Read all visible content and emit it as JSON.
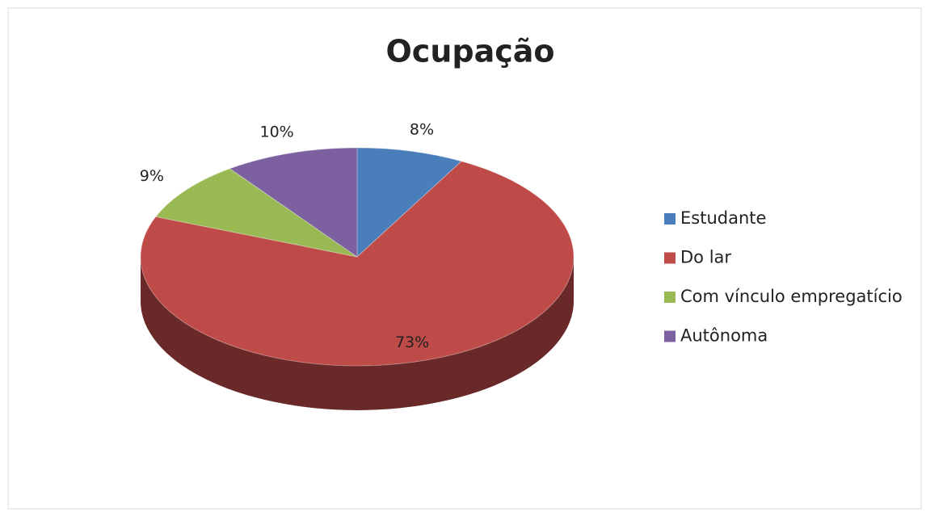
{
  "chart_data": {
    "type": "pie",
    "title": "Ocupação",
    "categories": [
      "Estudante",
      "Do lar",
      "Com vínculo empregatício",
      "Autônoma"
    ],
    "values": [
      8,
      73,
      9,
      10
    ],
    "value_labels": [
      "8%",
      "73%",
      "9%",
      "10%"
    ],
    "colors": [
      "#4a7ebb",
      "#be4b48",
      "#98b954",
      "#7d60a0"
    ],
    "legend": "right"
  }
}
